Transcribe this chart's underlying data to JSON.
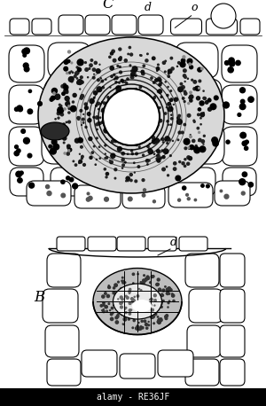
{
  "fig_width": 3.0,
  "fig_height": 4.58,
  "dpi": 100,
  "background_color": "#ffffff",
  "label_C": "C",
  "label_B": "B",
  "label_d_top": "d",
  "label_o_top": "o",
  "label_d_bot": "d",
  "watermark": "alamy • RE36JF",
  "watermark2": "alamy - RE36JF"
}
